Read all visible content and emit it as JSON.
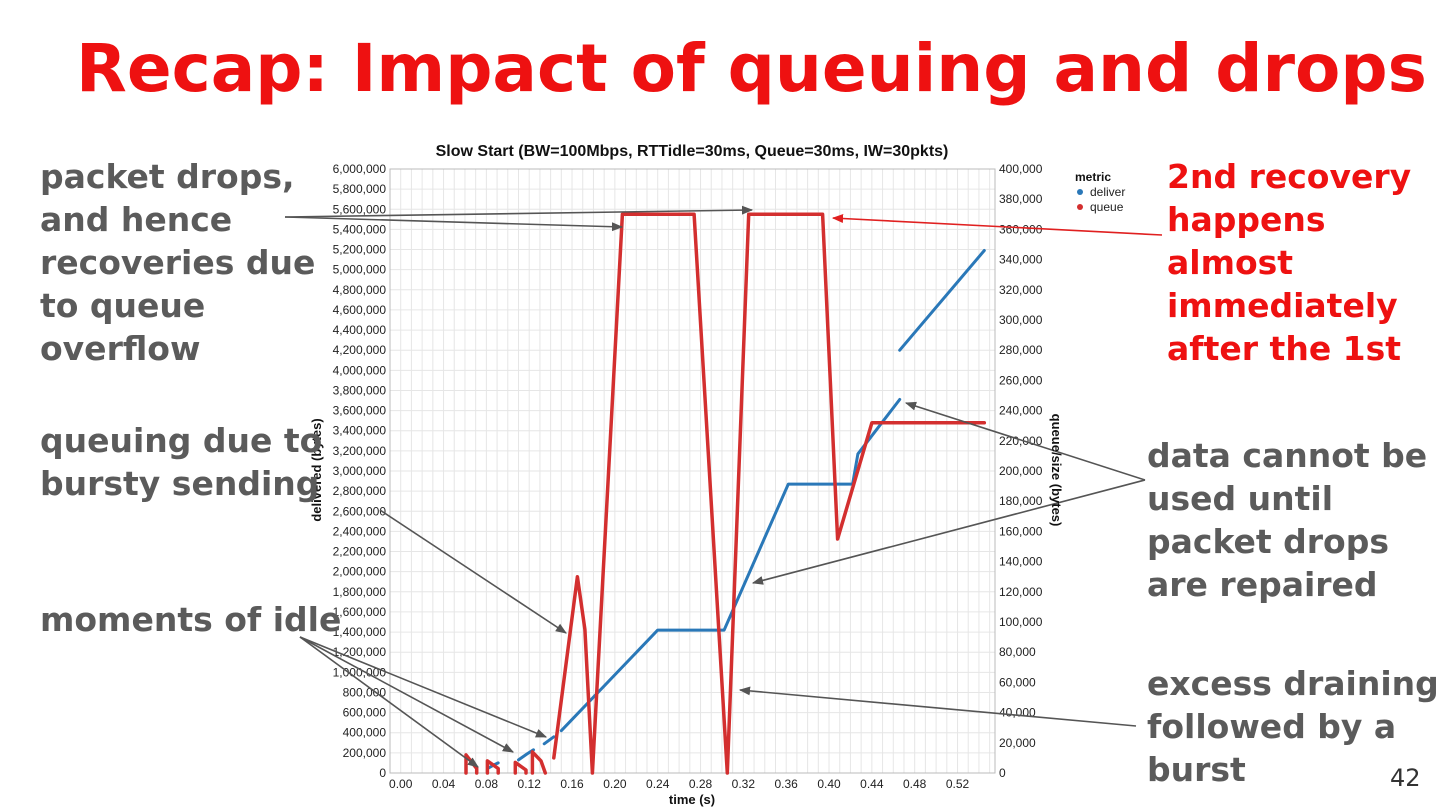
{
  "slide": {
    "title": "Recap: Impact of queuing and drops",
    "page_number": "42",
    "annotations": [
      {
        "id": "drops",
        "lines": [
          "packet drops,",
          "and hence",
          "recoveries due",
          "to queue",
          "overflow"
        ],
        "color": "#5b5b5b"
      },
      {
        "id": "bursty",
        "lines": [
          "queuing due to",
          "bursty sending"
        ],
        "color": "#5b5b5b"
      },
      {
        "id": "idle",
        "lines": [
          "moments of idle"
        ],
        "color": "#5b5b5b"
      },
      {
        "id": "recovery",
        "lines": [
          "2nd recovery",
          "happens",
          "almost",
          "immediately",
          "after the 1st"
        ],
        "color": "#ee1111"
      },
      {
        "id": "unusable",
        "lines": [
          "data cannot be",
          "used until",
          "packet drops",
          "are repaired"
        ],
        "color": "#5b5b5b"
      },
      {
        "id": "draining",
        "lines": [
          "excess draining",
          "followed by a",
          "burst"
        ],
        "color": "#5b5b5b"
      }
    ]
  },
  "chart_data": {
    "type": "line",
    "title": "Slow Start (BW=100Mbps, RTTidle=30ms, Queue=30ms, IW=30pkts)",
    "xlabel": "time (s)",
    "ylabel": "delivered (bytes)",
    "y2label": "queue/size (bytes)",
    "xlim": [
      -0.01,
      0.555
    ],
    "ylim": [
      0,
      6000000
    ],
    "y2lim": [
      0,
      400000
    ],
    "xticks": [
      "0.00",
      "0.04",
      "0.08",
      "0.12",
      "0.16",
      "0.20",
      "0.24",
      "0.28",
      "0.32",
      "0.36",
      "0.40",
      "0.44",
      "0.48",
      "0.52"
    ],
    "xtick_values": [
      0,
      0.04,
      0.08,
      0.12,
      0.16,
      0.2,
      0.24,
      0.28,
      0.32,
      0.36,
      0.4,
      0.44,
      0.48,
      0.52
    ],
    "yticks": [
      "0",
      "200,000",
      "400,000",
      "600,000",
      "800,000",
      "1,000,000",
      "1,200,000",
      "1,400,000",
      "1,600,000",
      "1,800,000",
      "2,000,000",
      "2,200,000",
      "2,400,000",
      "2,600,000",
      "2,800,000",
      "3,000,000",
      "3,200,000",
      "3,400,000",
      "3,600,000",
      "3,800,000",
      "4,000,000",
      "4,200,000",
      "4,400,000",
      "4,600,000",
      "4,800,000",
      "5,000,000",
      "5,200,000",
      "5,400,000",
      "5,600,000",
      "5,800,000",
      "6,000,000"
    ],
    "y2ticks": [
      "0",
      "20,000",
      "40,000",
      "60,000",
      "80,000",
      "100,000",
      "120,000",
      "140,000",
      "160,000",
      "180,000",
      "200,000",
      "220,000",
      "240,000",
      "260,000",
      "280,000",
      "300,000",
      "320,000",
      "340,000",
      "360,000",
      "380,000",
      "400,000"
    ],
    "grid": true,
    "legend": {
      "title": "metric",
      "position": "top-right"
    },
    "series": [
      {
        "name": "deliver",
        "axis": "left",
        "color": "#2a78b8",
        "segments": [
          [
            [
              0.082,
              50000
            ],
            [
              0.087,
              80000
            ],
            [
              0.091,
              100000
            ]
          ],
          [
            [
              0.11,
              130000
            ],
            [
              0.118,
              190000
            ],
            [
              0.124,
              230000
            ]
          ],
          [
            [
              0.134,
              290000
            ],
            [
              0.143,
              360000
            ]
          ],
          [
            [
              0.15,
              420000
            ],
            [
              0.24,
              1420000
            ],
            [
              0.302,
              1420000
            ],
            [
              0.362,
              2870000
            ],
            [
              0.422,
              2870000
            ],
            [
              0.427,
              3170000
            ],
            [
              0.466,
              3710000
            ]
          ],
          [
            [
              0.466,
              4200000
            ],
            [
              0.545,
              5190000
            ]
          ]
        ]
      },
      {
        "name": "queue",
        "axis": "right",
        "color": "#d32f2f",
        "segments": [
          [
            [
              0.061,
              0
            ],
            [
              0.061,
              12000
            ],
            [
              0.071,
              3000
            ],
            [
              0.071,
              0
            ]
          ],
          [
            [
              0.081,
              0
            ],
            [
              0.081,
              8000
            ],
            [
              0.091,
              3000
            ],
            [
              0.091,
              0
            ]
          ],
          [
            [
              0.107,
              0
            ],
            [
              0.107,
              7000
            ],
            [
              0.117,
              2000
            ],
            [
              0.117,
              0
            ]
          ],
          [
            [
              0.123,
              0
            ],
            [
              0.123,
              14000
            ],
            [
              0.131,
              8000
            ],
            [
              0.135,
              0
            ]
          ],
          [
            [
              0.143,
              10000
            ],
            [
              0.165,
              130000
            ],
            [
              0.172,
              95000
            ],
            [
              0.179,
              0
            ],
            [
              0.207,
              370000
            ],
            [
              0.274,
              370000
            ],
            [
              0.305,
              0
            ],
            [
              0.325,
              370000
            ],
            [
              0.394,
              370000
            ],
            [
              0.408,
              155000
            ],
            [
              0.44,
              232000
            ],
            [
              0.545,
              232000
            ]
          ]
        ]
      }
    ]
  }
}
